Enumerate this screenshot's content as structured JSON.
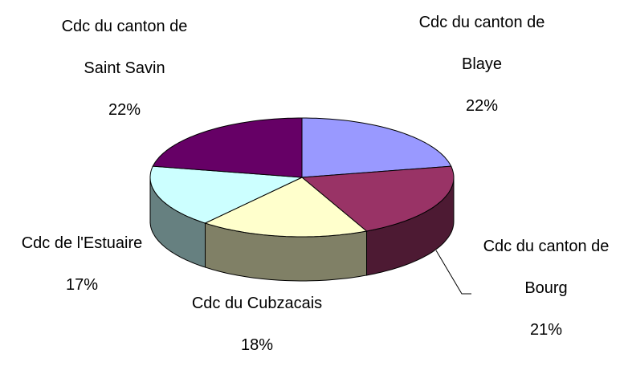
{
  "chart_data": {
    "type": "pie3d",
    "categories": [
      "Cdc du canton de Blaye",
      "Cdc du canton de Bourg",
      "Cdc du Cubzacais",
      "Cdc de l'Estuaire",
      "Cdc du canton de Saint Savin"
    ],
    "values": [
      22,
      21,
      18,
      17,
      22
    ],
    "value_labels": [
      "22%",
      "21%",
      "18%",
      "17%",
      "22%"
    ],
    "colors": [
      "#9999ff",
      "#993366",
      "#ffffcc",
      "#ccffff",
      "#660066"
    ]
  }
}
